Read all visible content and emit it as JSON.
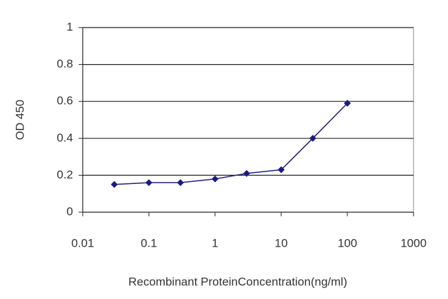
{
  "chart_data": {
    "type": "line",
    "x_label": "Recombinant ProteinConcentration(ng/ml)",
    "y_label": "OD 450",
    "x": [
      0.03,
      0.1,
      0.3,
      1,
      3,
      10,
      30,
      100
    ],
    "series": [
      {
        "color": "#1c1c7a",
        "values": [
          0.15,
          0.16,
          0.16,
          0.18,
          0.21,
          0.23,
          0.4,
          0.59
        ]
      }
    ],
    "xlim": [
      0.01,
      1000
    ],
    "xticks": [
      0.01,
      0.1,
      1,
      10,
      100,
      1000
    ],
    "ylim": [
      0,
      1
    ],
    "yticks": [
      0,
      0.2,
      0.4,
      0.6,
      0.8,
      1
    ],
    "x_log": true,
    "grid": true
  }
}
